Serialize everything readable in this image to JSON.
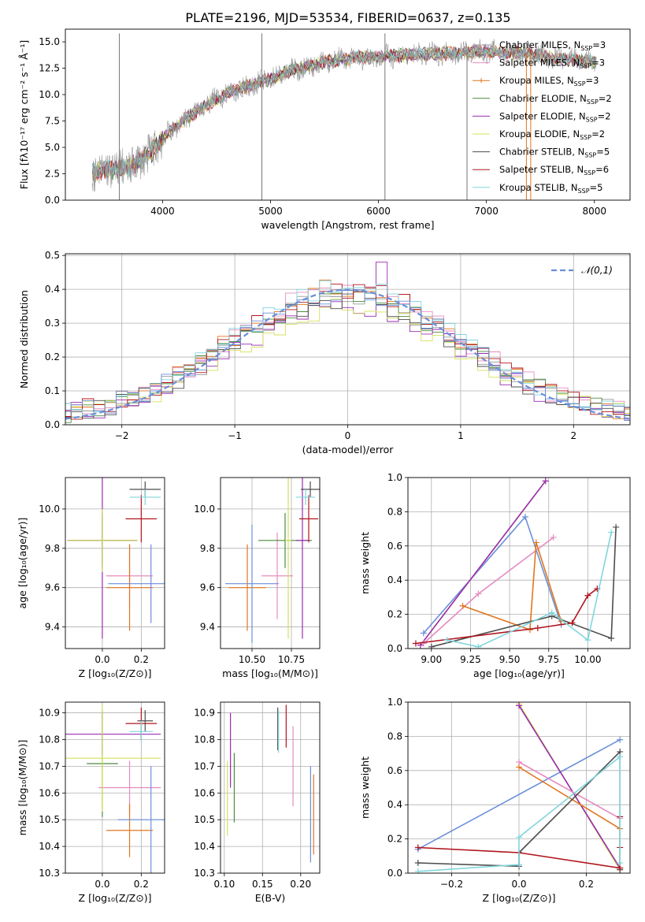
{
  "figure_title": "PLATE=2196, MJD=53534, FIBERID=0637, z=0.135",
  "colors": {
    "Chabrier MILES": "#999999",
    "Salpeter MILES": "#e58bc0",
    "Kroupa MILES": "#e0761f",
    "Chabrier ELODIE": "#4a8a3f",
    "Salpeter ELODIE": "#9a2bb0",
    "Kroupa ELODIE": "#d5e05a",
    "Chabrier STELIB": "#4d4d4d",
    "Salpeter STELIB": "#b0151d",
    "Kroupa STELIB": "#80d5dd",
    "blue": "#6a8fd8"
  },
  "chart_data": [
    {
      "id": "spectrum",
      "type": "line",
      "title": "PLATE=2196, MJD=53534, FIBERID=0637, z=0.135",
      "xlabel": "wavelength [Angstrom, rest frame]",
      "ylabel": "Flux [fλ10⁻¹⁷ erg cm⁻² s⁻¹ Å⁻¹]",
      "xlim": [
        3100,
        8330
      ],
      "ylim": [
        0,
        16.2
      ],
      "xticks": [
        4000,
        5000,
        6000,
        7000,
        8000
      ],
      "yticks": [
        0.0,
        2.5,
        5.0,
        7.5,
        10.0,
        12.5,
        15.0
      ],
      "legend": [
        {
          "name": "Chabrier MILES, N_SSP=3",
          "color": "#999999",
          "marker": ""
        },
        {
          "name": "Salpeter MILES, N_SSP=3",
          "color": "#e58bc0",
          "marker": ""
        },
        {
          "name": "Kroupa MILES, N_SSP=3",
          "color": "#e0761f",
          "marker": "|"
        },
        {
          "name": "Chabrier ELODIE, N_SSP=2",
          "color": "#4a8a3f",
          "marker": ""
        },
        {
          "name": "Salpeter ELODIE, N_SSP=2",
          "color": "#9a2bb0",
          "marker": ""
        },
        {
          "name": "Kroupa ELODIE, N_SSP=2",
          "color": "#d5e05a",
          "marker": ""
        },
        {
          "name": "Chabrier STELIB, N_SSP=5",
          "color": "#4d4d4d",
          "marker": ""
        },
        {
          "name": "Salpeter STELIB, N_SSP=6",
          "color": "#b0151d",
          "marker": ""
        },
        {
          "name": "Kroupa STELIB, N_SSP=5",
          "color": "#80d5dd",
          "marker": ""
        }
      ],
      "legend_placement": "right",
      "continuum": [
        [
          3350,
          2.6
        ],
        [
          3500,
          2.9
        ],
        [
          3700,
          3.1
        ],
        [
          3900,
          4.6
        ],
        [
          4050,
          6.3
        ],
        [
          4200,
          7.6
        ],
        [
          4400,
          9.0
        ],
        [
          4600,
          10.1
        ],
        [
          4800,
          10.8
        ],
        [
          5000,
          11.5
        ],
        [
          5200,
          12.3
        ],
        [
          5400,
          12.8
        ],
        [
          5600,
          13.3
        ],
        [
          5800,
          13.5
        ],
        [
          6000,
          13.6
        ],
        [
          6200,
          13.7
        ],
        [
          6400,
          13.8
        ],
        [
          6600,
          13.9
        ],
        [
          6800,
          14.0
        ],
        [
          7000,
          14.1
        ],
        [
          7200,
          14.0
        ],
        [
          7400,
          13.9
        ],
        [
          7600,
          13.5
        ],
        [
          7800,
          13.3
        ],
        [
          7950,
          13.1
        ]
      ],
      "spikes": [
        [
          3600,
          0
        ],
        [
          3600,
          15.8
        ],
        [
          4920,
          0
        ],
        [
          4920,
          15.8
        ],
        [
          6060,
          0
        ],
        [
          6060,
          15.8
        ],
        [
          6820,
          0
        ],
        [
          7370,
          0
        ],
        [
          7410,
          0
        ]
      ]
    },
    {
      "id": "residuals",
      "type": "step",
      "xlabel": "(data-model)/error",
      "ylabel": "Normed distribution",
      "xlim": [
        -2.5,
        2.5
      ],
      "ylim": [
        0,
        0.505
      ],
      "xticks": [
        -2,
        -1,
        0,
        1,
        2
      ],
      "yticks": [
        0.0,
        0.1,
        0.2,
        0.3,
        0.4,
        0.5
      ],
      "gaussian_label": "𝒩(0,1)",
      "bin_width": 0.1,
      "series_note": "nine residual histograms, one per model",
      "peak_values": {
        "Salpeter ELODIE": 0.48,
        "Kroupa MILES peak": 0.43
      }
    },
    {
      "id": "age_vs_Z",
      "type": "errorbar",
      "xlabel": "Z [log₁₀(Z/Z⊙)]",
      "ylabel": "age  [log₁₀(age/yr)]",
      "xlim": [
        -0.19,
        0.32
      ],
      "ylim": [
        9.29,
        10.16
      ],
      "xticks": [
        0.0,
        0.2
      ],
      "yticks": [
        9.4,
        9.6,
        9.8,
        10.0
      ],
      "points": [
        {
          "model": "Chabrier MILES",
          "x": 0.0,
          "y": 9.84,
          "xerr": 0.18,
          "yerr": 0.12
        },
        {
          "model": "Salpeter MILES",
          "x": 0.14,
          "y": 9.66,
          "xerr": 0.12,
          "yerr": 0.16
        },
        {
          "model": "Kroupa MILES",
          "x": 0.14,
          "y": 9.6,
          "xerr": 0.12,
          "yerr": 0.22
        },
        {
          "model": "Chabrier ELODIE",
          "x": 0.0,
          "y": 9.84,
          "xerr": 0.18,
          "yerr": 0.14
        },
        {
          "model": "Salpeter ELODIE",
          "x": 0.0,
          "y": 9.84,
          "xerr": 0.18,
          "yerr": 0.5
        },
        {
          "model": "Kroupa ELODIE",
          "x": 0.0,
          "y": 9.84,
          "xerr": 0.18,
          "yerr": 0.16
        },
        {
          "model": "Chabrier STELIB",
          "x": 0.22,
          "y": 10.1,
          "xerr": 0.08,
          "yerr": 0.04
        },
        {
          "model": "Salpeter STELIB",
          "x": 0.2,
          "y": 9.95,
          "xerr": 0.08,
          "yerr": 0.12
        },
        {
          "model": "Kroupa STELIB",
          "x": 0.22,
          "y": 10.06,
          "xerr": 0.08,
          "yerr": 0.04
        },
        {
          "model": "blue",
          "x": 0.25,
          "y": 9.62,
          "xerr": 0.22,
          "yerr": 0.2
        }
      ]
    },
    {
      "id": "age_vs_mass",
      "type": "errorbar",
      "xlabel": "mass [log₁₀(M/M⊙)]",
      "ylabel": "",
      "xlim": [
        10.3,
        10.93
      ],
      "ylim": [
        9.29,
        10.16
      ],
      "xticks": [
        10.5,
        10.75
      ],
      "yticks": [
        9.4,
        9.6,
        9.8,
        10.0
      ],
      "points": [
        {
          "model": "Salpeter MILES",
          "x": 10.66,
          "y": 9.66,
          "xerr": 0.1,
          "yerr": 0.22
        },
        {
          "model": "Kroupa MILES",
          "x": 10.47,
          "y": 9.6,
          "xerr": 0.12,
          "yerr": 0.22
        },
        {
          "model": "Chabrier ELODIE",
          "x": 10.71,
          "y": 9.84,
          "xerr": 0.17,
          "yerr": 0.14
        },
        {
          "model": "Salpeter ELODIE",
          "x": 10.82,
          "y": 9.84,
          "xerr": 0.04,
          "yerr": 0.5
        },
        {
          "model": "Kroupa ELODIE",
          "x": 10.73,
          "y": 9.84,
          "xerr": 0.02,
          "yerr": 0.5
        },
        {
          "model": "Chabrier STELIB",
          "x": 10.87,
          "y": 10.1,
          "xerr": 0.06,
          "yerr": 0.04
        },
        {
          "model": "Salpeter STELIB",
          "x": 10.86,
          "y": 9.95,
          "xerr": 0.06,
          "yerr": 0.12
        },
        {
          "model": "Kroupa STELIB",
          "x": 10.84,
          "y": 10.06,
          "xerr": 0.06,
          "yerr": 0.04
        },
        {
          "model": "blue",
          "x": 10.5,
          "y": 9.62,
          "xerr": 0.17,
          "yerr": 0.3
        }
      ]
    },
    {
      "id": "weight_vs_age",
      "type": "line",
      "xlabel": "age  [log₁₀(age/yr)]",
      "ylabel": "mass weight",
      "xlim": [
        8.85,
        10.27
      ],
      "ylim": [
        0,
        1.0
      ],
      "xticks": [
        9.0,
        9.25,
        9.5,
        9.75,
        10.0
      ],
      "yticks": [
        0.0,
        0.2,
        0.4,
        0.6,
        0.8,
        1.0
      ],
      "series": [
        {
          "model": "blue",
          "x": [
            8.95,
            9.6,
            9.83
          ],
          "y": [
            0.09,
            0.77,
            0.14
          ]
        },
        {
          "model": "Kroupa ELODIE",
          "x": [
            8.93,
            9.73
          ],
          "y": [
            0.02,
            0.98
          ]
        },
        {
          "model": "Salpeter ELODIE",
          "x": [
            8.93,
            9.73
          ],
          "y": [
            0.02,
            0.98
          ]
        },
        {
          "model": "Salpeter MILES",
          "x": [
            8.95,
            9.3,
            9.78
          ],
          "y": [
            0.03,
            0.32,
            0.65
          ]
        },
        {
          "model": "Kroupa MILES",
          "x": [
            9.2,
            9.63,
            9.67,
            9.83
          ],
          "y": [
            0.25,
            0.11,
            0.62,
            0.16
          ]
        },
        {
          "model": "Chabrier STELIB",
          "x": [
            9.0,
            9.77,
            10.15,
            10.18
          ],
          "y": [
            0.01,
            0.19,
            0.06,
            0.71
          ]
        },
        {
          "model": "Salpeter STELIB",
          "x": [
            8.9,
            9.68,
            9.9,
            10.0,
            10.06
          ],
          "y": [
            0.03,
            0.12,
            0.15,
            0.31,
            0.35
          ]
        },
        {
          "model": "Kroupa STELIB",
          "x": [
            9.1,
            9.3,
            9.77,
            10.0,
            10.15
          ],
          "y": [
            0.05,
            0.01,
            0.21,
            0.05,
            0.68
          ]
        }
      ]
    },
    {
      "id": "mass_vs_Z",
      "type": "errorbar",
      "xlabel": "Z [log₁₀(Z/Z⊙)]",
      "ylabel": "mass [log₁₀(M/M⊙)]",
      "xlim": [
        -0.19,
        0.32
      ],
      "ylim": [
        10.3,
        10.94
      ],
      "xticks": [
        0.0,
        0.2
      ],
      "yticks": [
        10.3,
        10.4,
        10.5,
        10.6,
        10.7,
        10.8,
        10.9
      ],
      "points": [
        {
          "model": "Salpeter MILES",
          "x": 0.14,
          "y": 10.62,
          "xerr": 0.16,
          "yerr": 0.1
        },
        {
          "model": "Kroupa MILES",
          "x": 0.14,
          "y": 10.46,
          "xerr": 0.12,
          "yerr": 0.1
        },
        {
          "model": "Chabrier ELODIE",
          "x": 0.0,
          "y": 10.71,
          "xerr": 0.08,
          "yerr": 0.2
        },
        {
          "model": "Salpeter ELODIE",
          "x": 0.0,
          "y": 10.82,
          "xerr": 0.3,
          "yerr": 0.08
        },
        {
          "model": "Kroupa ELODIE",
          "x": 0.0,
          "y": 10.73,
          "xerr": 0.3,
          "yerr": 0.2
        },
        {
          "model": "Chabrier STELIB",
          "x": 0.22,
          "y": 10.87,
          "xerr": 0.04,
          "yerr": 0.04
        },
        {
          "model": "Salpeter STELIB",
          "x": 0.2,
          "y": 10.86,
          "xerr": 0.08,
          "yerr": 0.06
        },
        {
          "model": "Kroupa STELIB",
          "x": 0.2,
          "y": 10.83,
          "xerr": 0.06,
          "yerr": 0.04
        },
        {
          "model": "blue",
          "x": 0.25,
          "y": 10.5,
          "xerr": 0.17,
          "yerr": 0.2
        }
      ]
    },
    {
      "id": "mass_vs_EBV",
      "type": "errorbar",
      "xlabel": "E(B-V)",
      "ylabel": "",
      "xlim": [
        0.095,
        0.225
      ],
      "ylim": [
        10.3,
        10.94
      ],
      "xticks": [
        0.1,
        0.15,
        0.2
      ],
      "yticks": [
        10.3,
        10.4,
        10.5,
        10.6,
        10.7,
        10.8,
        10.9
      ],
      "points": [
        {
          "model": "Kroupa ELODIE",
          "x": 0.104,
          "y": 10.58,
          "xerr": 0,
          "yerr": 0.14
        },
        {
          "model": "Salpeter ELODIE",
          "x": 0.108,
          "y": 10.76,
          "xerr": 0,
          "yerr": 0.14
        },
        {
          "model": "Chabrier ELODIE",
          "x": 0.113,
          "y": 10.62,
          "xerr": 0,
          "yerr": 0.13
        },
        {
          "model": "Chabrier STELIB",
          "x": 0.17,
          "y": 10.84,
          "xerr": 0,
          "yerr": 0.08
        },
        {
          "model": "Kroupa STELIB",
          "x": 0.171,
          "y": 10.83,
          "xerr": 0,
          "yerr": 0.08
        },
        {
          "model": "Salpeter STELIB",
          "x": 0.181,
          "y": 10.85,
          "xerr": 0,
          "yerr": 0.08
        },
        {
          "model": "Salpeter MILES",
          "x": 0.19,
          "y": 10.7,
          "xerr": 0,
          "yerr": 0.15
        },
        {
          "model": "blue",
          "x": 0.213,
          "y": 10.52,
          "xerr": 0,
          "yerr": 0.18
        },
        {
          "model": "Kroupa MILES",
          "x": 0.217,
          "y": 10.52,
          "xerr": 0,
          "yerr": 0.15
        }
      ]
    },
    {
      "id": "weight_vs_Z",
      "type": "line",
      "xlabel": "Z [log₁₀(Z/Z⊙)]",
      "ylabel": "mass weight",
      "xlim": [
        -0.33,
        0.33
      ],
      "ylim": [
        0,
        1.0
      ],
      "xticks": [
        -0.2,
        0.0,
        0.2
      ],
      "yticks": [
        0.0,
        0.2,
        0.4,
        0.6,
        0.8,
        1.0
      ],
      "series": [
        {
          "model": "blue",
          "x": [
            -0.3,
            0.3
          ],
          "y": [
            0.14,
            0.78
          ]
        },
        {
          "model": "Kroupa ELODIE",
          "x": [
            0.0,
            0.3
          ],
          "y": [
            0.99,
            0.02
          ]
        },
        {
          "model": "Salpeter ELODIE",
          "x": [
            0.0,
            0.3
          ],
          "y": [
            0.98,
            0.03
          ]
        },
        {
          "model": "Salpeter MILES",
          "x": [
            0.0,
            0.3
          ],
          "y": [
            0.65,
            0.32
          ]
        },
        {
          "model": "Kroupa MILES",
          "x": [
            0.0,
            0.3
          ],
          "y": [
            0.62,
            0.26
          ]
        },
        {
          "model": "Chabrier STELIB",
          "x": [
            -0.3,
            0.0,
            0.0,
            0.3,
            0.3
          ],
          "y": [
            0.06,
            0.04,
            0.12,
            0.71,
            0.02
          ]
        },
        {
          "model": "Salpeter STELIB",
          "x": [
            -0.3,
            0.0,
            0.3,
            0.3,
            0.3
          ],
          "y": [
            0.15,
            0.12,
            0.03,
            0.33,
            0.15
          ]
        },
        {
          "model": "Kroupa STELIB",
          "x": [
            -0.3,
            0.0,
            0.0,
            0.3,
            0.3
          ],
          "y": [
            0.01,
            0.05,
            0.21,
            0.68,
            0.06
          ]
        }
      ]
    }
  ]
}
